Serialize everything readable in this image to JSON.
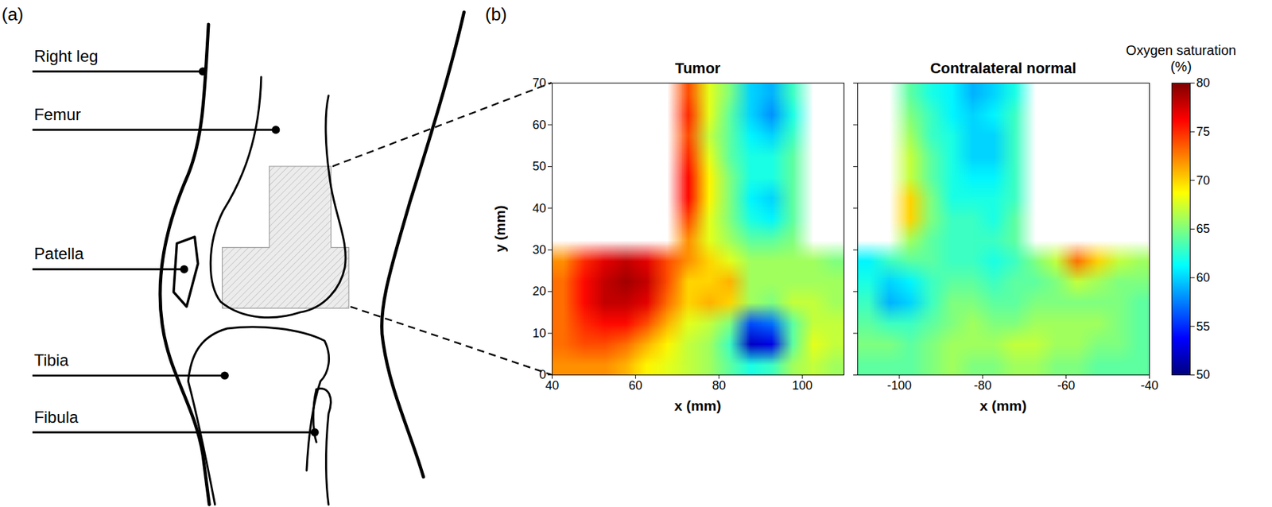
{
  "panel_a": {
    "letter": "(a)",
    "labels": [
      "Right leg",
      "Femur",
      "Patella",
      "Tibia",
      "Fibula"
    ]
  },
  "panel_b": {
    "letter": "(b)"
  },
  "colorbar": {
    "label": "Oxygen saturation (%)",
    "range": [
      50,
      80
    ],
    "ticks": [
      50,
      55,
      60,
      65,
      70,
      75,
      80
    ]
  },
  "chart_data": [
    {
      "type": "heatmap",
      "title": "Tumor",
      "x_label": "x (mm)",
      "y_label": "y (mm)",
      "xlim": [
        40,
        110
      ],
      "xticks": [
        40,
        60,
        80,
        100
      ],
      "ylim": [
        0,
        70
      ],
      "yticks": [
        0,
        10,
        20,
        30,
        40,
        50,
        60,
        70
      ],
      "cell_x": [
        42.5,
        47.5,
        52.5,
        57.5,
        62.5,
        67.5,
        72.5,
        77.5,
        82.5,
        87.5,
        92.5,
        97.5,
        102.5,
        107.5
      ],
      "cell_y": [
        67.5,
        62.5,
        57.5,
        52.5,
        47.5,
        42.5,
        37.5,
        32.5,
        27.5,
        22.5,
        17.5,
        12.5,
        7.5,
        2.5
      ],
      "cells": [
        [
          null,
          null,
          null,
          null,
          null,
          null,
          74,
          68,
          65,
          60,
          59,
          63,
          null,
          null
        ],
        [
          null,
          null,
          null,
          null,
          null,
          null,
          75,
          68,
          64,
          60,
          58,
          62,
          null,
          null
        ],
        [
          null,
          null,
          null,
          null,
          null,
          null,
          74,
          67,
          64,
          61,
          60,
          63,
          null,
          null
        ],
        [
          null,
          null,
          null,
          null,
          null,
          null,
          75,
          68,
          64,
          62,
          62,
          64,
          null,
          null
        ],
        [
          null,
          null,
          null,
          null,
          null,
          null,
          76,
          69,
          65,
          62,
          62,
          64,
          null,
          null
        ],
        [
          null,
          null,
          null,
          null,
          null,
          null,
          76,
          69,
          65,
          61,
          60,
          64,
          null,
          null
        ],
        [
          null,
          null,
          null,
          null,
          null,
          null,
          74,
          68,
          65,
          62,
          61,
          64,
          null,
          null
        ],
        [
          null,
          null,
          null,
          null,
          null,
          null,
          72,
          68,
          66,
          64,
          64,
          65,
          null,
          null
        ],
        [
          72,
          75,
          77,
          78,
          77,
          74,
          72,
          70,
          68,
          66,
          66,
          66,
          66,
          65
        ],
        [
          73,
          76,
          78,
          79,
          78,
          74,
          70,
          70,
          71,
          66,
          66,
          66,
          66,
          66
        ],
        [
          73,
          76,
          78,
          78,
          77,
          73,
          70,
          71,
          70,
          66,
          65,
          67,
          67,
          66
        ],
        [
          73,
          75,
          76,
          76,
          74,
          71,
          68,
          67,
          65,
          56,
          57,
          64,
          67,
          67
        ],
        [
          73,
          74,
          74,
          73,
          71,
          69,
          67,
          66,
          63,
          52,
          53,
          64,
          68,
          67
        ],
        [
          72,
          72,
          72,
          71,
          69,
          68,
          67,
          66,
          64,
          62,
          63,
          66,
          67,
          66
        ]
      ]
    },
    {
      "type": "heatmap",
      "title": "Contralateral normal",
      "x_label": "x (mm)",
      "xlim": [
        -110,
        -40
      ],
      "xticks": [
        -100,
        -80,
        -60,
        -40
      ],
      "ylim": [
        0,
        70
      ],
      "yticks": [
        0,
        10,
        20,
        30,
        40,
        50,
        60,
        70
      ],
      "tick_labels": "x",
      "cell_x": [
        -107.5,
        -102.5,
        -97.5,
        -92.5,
        -87.5,
        -82.5,
        -77.5,
        -72.5,
        -67.5,
        -62.5,
        -57.5,
        -52.5,
        -47.5,
        -42.5
      ],
      "cell_y": [
        67.5,
        62.5,
        57.5,
        52.5,
        47.5,
        42.5,
        37.5,
        32.5,
        27.5,
        22.5,
        17.5,
        12.5,
        7.5,
        2.5
      ],
      "cells": [
        [
          null,
          null,
          64,
          62,
          61,
          59,
          60,
          62,
          null,
          null,
          null,
          null,
          null,
          null
        ],
        [
          null,
          null,
          65,
          63,
          61,
          60,
          61,
          63,
          null,
          null,
          null,
          null,
          null,
          null
        ],
        [
          null,
          null,
          66,
          63,
          62,
          60,
          60,
          63,
          null,
          null,
          null,
          null,
          null,
          null
        ],
        [
          null,
          null,
          67,
          64,
          62,
          60,
          60,
          63,
          null,
          null,
          null,
          null,
          null,
          null
        ],
        [
          null,
          null,
          67,
          64,
          62,
          61,
          61,
          63,
          null,
          null,
          null,
          null,
          null,
          null
        ],
        [
          null,
          null,
          70,
          65,
          62,
          62,
          62,
          63,
          null,
          null,
          null,
          null,
          null,
          null
        ],
        [
          null,
          null,
          70,
          65,
          63,
          63,
          62,
          64,
          null,
          null,
          null,
          null,
          null,
          null
        ],
        [
          null,
          null,
          66,
          64,
          63,
          63,
          63,
          64,
          null,
          null,
          null,
          null,
          null,
          null
        ],
        [
          61,
          63,
          64,
          64,
          63,
          63,
          62,
          63,
          65,
          67,
          73,
          70,
          67,
          66
        ],
        [
          62,
          60,
          61,
          63,
          64,
          64,
          63,
          64,
          64,
          65,
          67,
          66,
          65,
          65
        ],
        [
          63,
          59,
          60,
          63,
          65,
          65,
          64,
          64,
          65,
          65,
          65,
          65,
          65,
          64
        ],
        [
          64,
          63,
          63,
          64,
          65,
          66,
          65,
          65,
          66,
          66,
          66,
          66,
          65,
          64
        ],
        [
          65,
          65,
          64,
          65,
          66,
          66,
          66,
          67,
          67,
          66,
          66,
          65,
          65,
          64
        ],
        [
          64,
          64,
          64,
          65,
          66,
          65,
          65,
          66,
          66,
          65,
          65,
          64,
          64,
          64
        ]
      ]
    }
  ]
}
